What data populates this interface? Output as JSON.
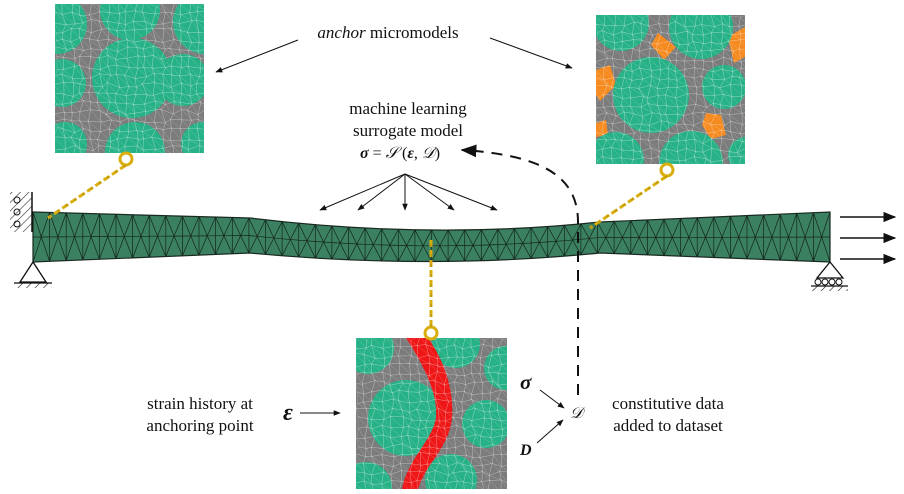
{
  "labels": {
    "anchor_word": "anchor",
    "micromodels": " micromodels",
    "ml_line1": "machine learning",
    "ml_line2": "surrogate model",
    "sigma": "σ",
    "equals": " = ",
    "S": "𝒮",
    "paren_open": " (",
    "epsilon": "ε",
    "comma": ", ",
    "D_cal": "𝒟",
    "paren_close": ")",
    "strain_line1": "strain history at",
    "strain_line2": "anchoring point",
    "eps_symbol": "ε",
    "sigma_symbol": "σ",
    "D_symbol": "D",
    "D_dataset": "𝒟",
    "const_line1": "constitutive data",
    "const_line2": "added to dataset"
  },
  "colors": {
    "beam_fill": "#3b8060",
    "beam_line": "#1a2a22",
    "micro_gray": "#7c7c7c",
    "micro_green": "#27b187",
    "micro_orange": "#f58a1f",
    "micro_red": "#ee1616",
    "chain": "#d9ae0c",
    "ink": "#111111"
  },
  "micromodels": [
    {
      "name": "top-left",
      "highlight": "none"
    },
    {
      "name": "top-right",
      "highlight": "orange"
    },
    {
      "name": "bottom",
      "highlight": "red"
    }
  ]
}
